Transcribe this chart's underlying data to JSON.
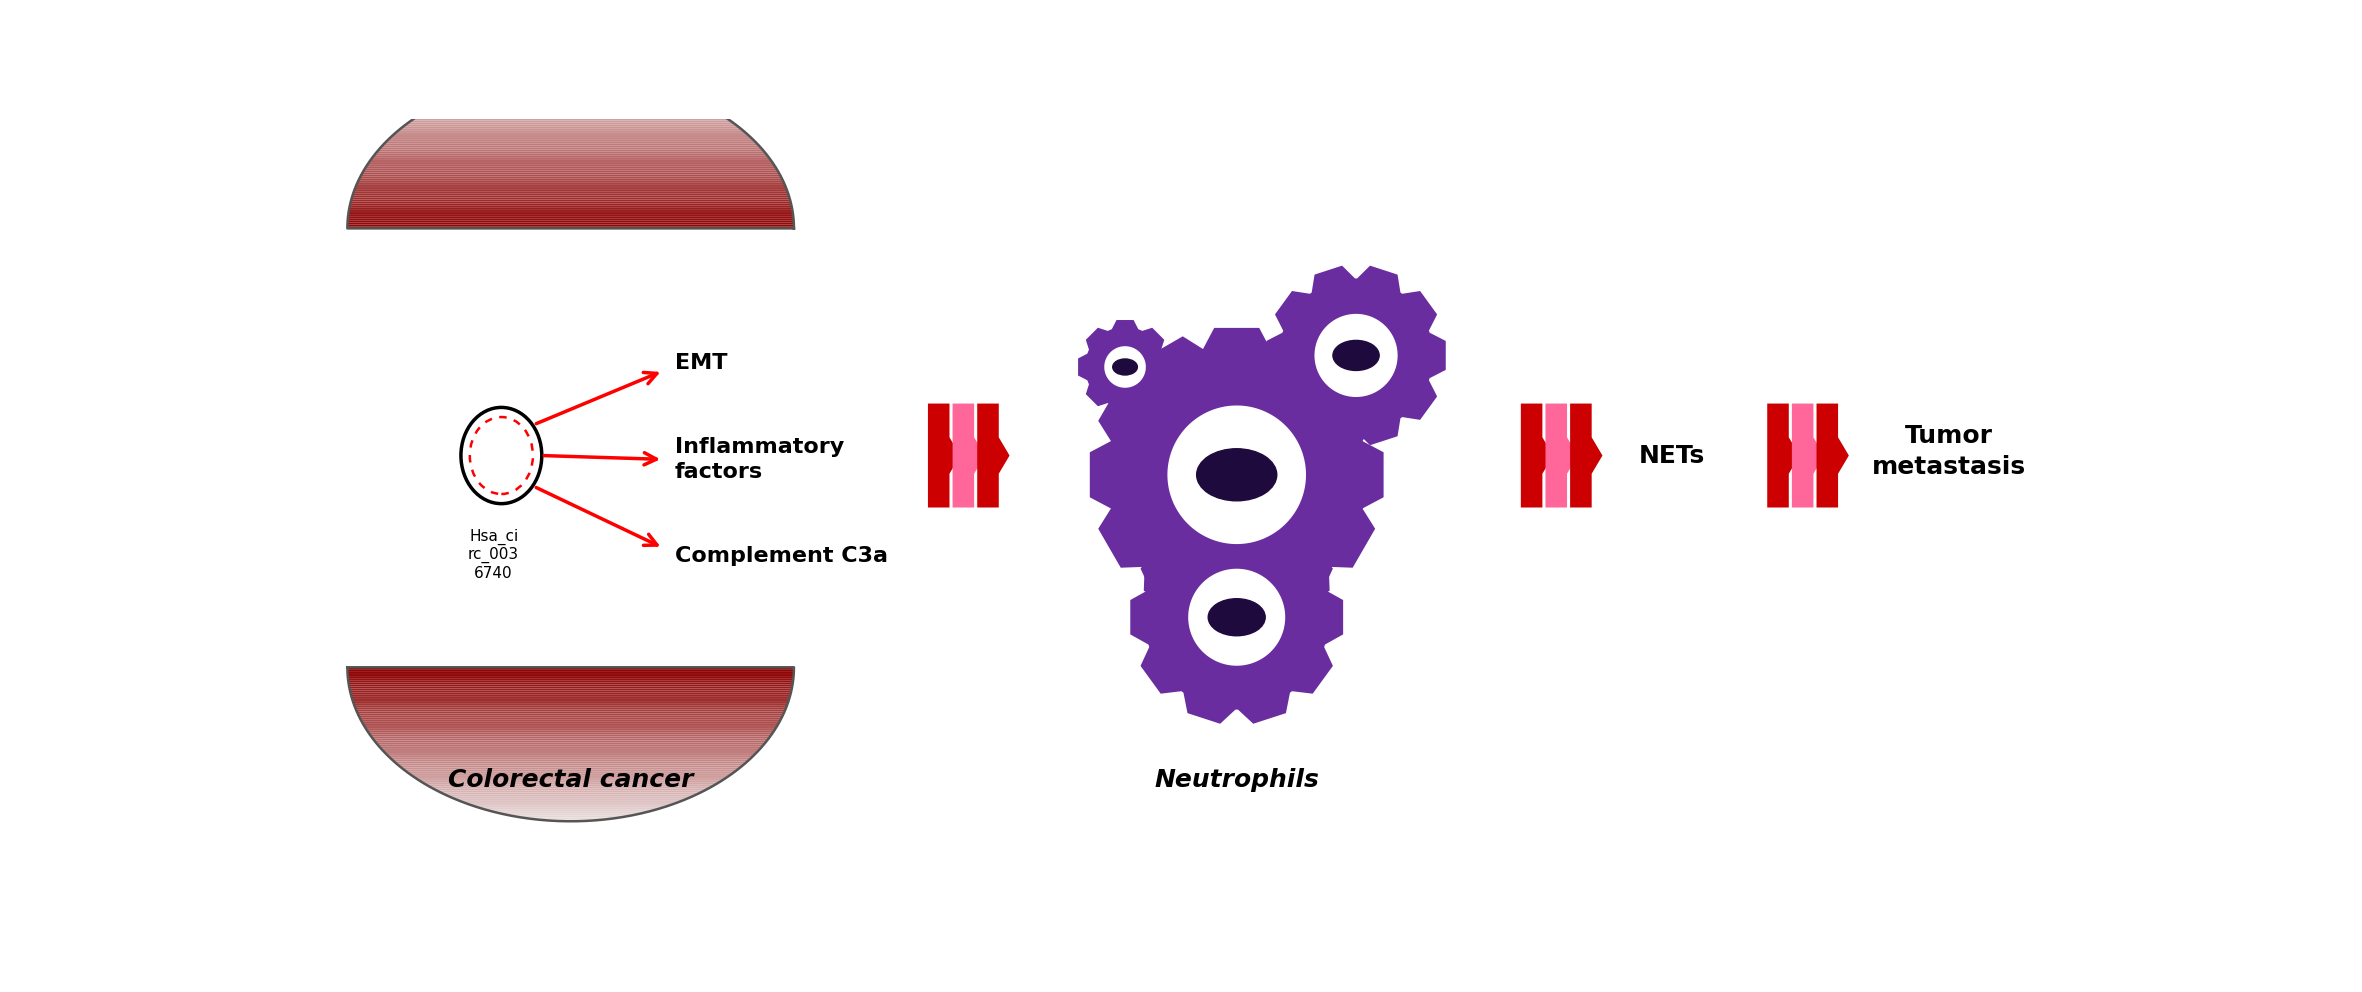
{
  "bg_color": "#ffffff",
  "colorectal_label": "Colorectal cancer",
  "neutrophils_label": "Neutrophils",
  "circ_label": "Hsa_ci\nrc_003\n6740",
  "label_emt": "EMT",
  "label_inflam": "Inflammatory\nfactors",
  "label_complement": "Complement C3a",
  "nets_label": "NETs",
  "tumor_label": "Tumor\nmetastasis",
  "gear_color": "#6A2D9F",
  "gear_dark": "#1E0A3C",
  "red_arrow": "#CC0000",
  "pink_arrow": "#FF6699",
  "dark_red": "#8B0000",
  "fig_w": 23.62,
  "fig_h": 9.92,
  "xlim": [
    0,
    23.62
  ],
  "ylim": [
    0,
    9.92
  ]
}
